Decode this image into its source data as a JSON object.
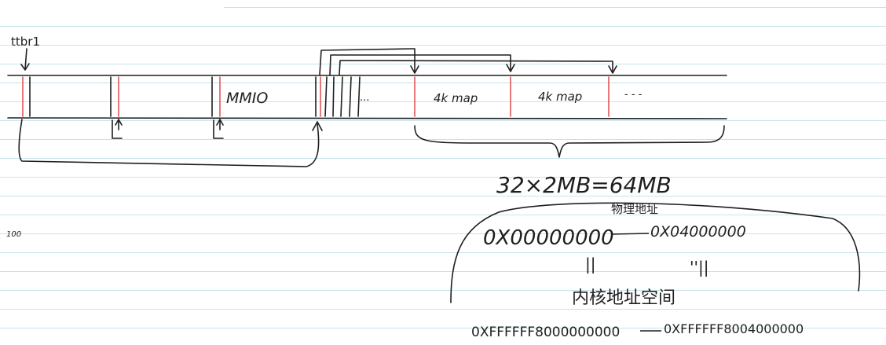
{
  "labels": {
    "ttbr1": "ttbr1",
    "mmio": "MMIO",
    "dots_inner": "...",
    "map_1": "4k map",
    "map_2": "4k map",
    "dots_outer": "- - -",
    "margin_note": "100",
    "equation": "32×2MB=64MB",
    "phys_title": "物理地址",
    "phys_range_start": "0X00000000",
    "phys_range_end": "0X04000000",
    "ditto_1": "||",
    "ditto_2": "''||",
    "virt_title": "内核地址空间",
    "virt_range_start": "0XFFFFFF8000000000",
    "virt_range_end": "0XFFFFFF8004000000"
  },
  "colors": {
    "ink": "#1f1f1f",
    "red_divider": "#e0575b",
    "ruling": "#c6e3ec"
  }
}
